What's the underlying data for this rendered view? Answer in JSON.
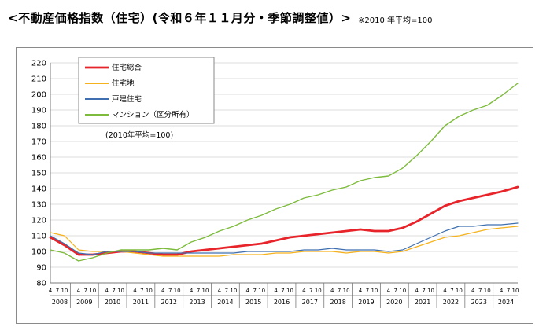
{
  "header": {
    "title": "<不動産価格指数（住宅）(令和６年１１月分・季節調整値）>",
    "note": "※2010 年平均=100"
  },
  "chart_data": {
    "type": "line",
    "title": "不動産価格指数（住宅）(令和６年１１月分・季節調整値）",
    "annotation": "(2010年平均=100)",
    "ylim": [
      80,
      220
    ],
    "ytick_step": 10,
    "y_ticks": [
      "80",
      "90",
      "100",
      "110",
      "120",
      "130",
      "140",
      "150",
      "160",
      "170",
      "180",
      "190",
      "200",
      "210",
      "220"
    ],
    "x_start": "2008-04",
    "x_end": "2024-11",
    "month_ticks": [
      "4",
      "7",
      "10"
    ],
    "years": [
      "2008",
      "2009",
      "2010",
      "2011",
      "2012",
      "2013",
      "2014",
      "2015",
      "2016",
      "2017",
      "2018",
      "2019",
      "2020",
      "2021",
      "2022",
      "2023",
      "2024"
    ],
    "grid": true,
    "legend_position": "top-left",
    "series": [
      {
        "name": "住宅総合",
        "color": "#e8242b",
        "width": 2.8,
        "points": [
          [
            "2008-04",
            109
          ],
          [
            "2008-10",
            104
          ],
          [
            "2009-04",
            98
          ],
          [
            "2009-10",
            98
          ],
          [
            "2010-04",
            99
          ],
          [
            "2010-10",
            100
          ],
          [
            "2011-04",
            100
          ],
          [
            "2011-10",
            99
          ],
          [
            "2012-04",
            98
          ],
          [
            "2012-10",
            98
          ],
          [
            "2013-04",
            100
          ],
          [
            "2013-10",
            101
          ],
          [
            "2014-04",
            102
          ],
          [
            "2014-10",
            103
          ],
          [
            "2015-04",
            104
          ],
          [
            "2015-10",
            105
          ],
          [
            "2016-04",
            107
          ],
          [
            "2016-10",
            109
          ],
          [
            "2017-04",
            110
          ],
          [
            "2017-10",
            111
          ],
          [
            "2018-04",
            112
          ],
          [
            "2018-10",
            113
          ],
          [
            "2019-04",
            114
          ],
          [
            "2019-10",
            113
          ],
          [
            "2020-04",
            113
          ],
          [
            "2020-10",
            115
          ],
          [
            "2021-04",
            119
          ],
          [
            "2021-10",
            124
          ],
          [
            "2022-04",
            129
          ],
          [
            "2022-10",
            132
          ],
          [
            "2023-04",
            134
          ],
          [
            "2023-10",
            136
          ],
          [
            "2024-04",
            138
          ],
          [
            "2024-11",
            141
          ]
        ]
      },
      {
        "name": "住宅地",
        "color": "#f5b21c",
        "width": 1.2,
        "points": [
          [
            "2008-04",
            112
          ],
          [
            "2008-10",
            110
          ],
          [
            "2009-04",
            101
          ],
          [
            "2009-10",
            100
          ],
          [
            "2010-04",
            100
          ],
          [
            "2010-10",
            100
          ],
          [
            "2011-04",
            99
          ],
          [
            "2011-10",
            98
          ],
          [
            "2012-04",
            97
          ],
          [
            "2012-10",
            97
          ],
          [
            "2013-04",
            97
          ],
          [
            "2013-10",
            97
          ],
          [
            "2014-04",
            97
          ],
          [
            "2014-10",
            98
          ],
          [
            "2015-04",
            98
          ],
          [
            "2015-10",
            98
          ],
          [
            "2016-04",
            99
          ],
          [
            "2016-10",
            99
          ],
          [
            "2017-04",
            100
          ],
          [
            "2017-10",
            100
          ],
          [
            "2018-04",
            100
          ],
          [
            "2018-10",
            99
          ],
          [
            "2019-04",
            100
          ],
          [
            "2019-10",
            100
          ],
          [
            "2020-04",
            99
          ],
          [
            "2020-10",
            100
          ],
          [
            "2021-04",
            103
          ],
          [
            "2021-10",
            106
          ],
          [
            "2022-04",
            109
          ],
          [
            "2022-10",
            110
          ],
          [
            "2023-04",
            112
          ],
          [
            "2023-10",
            114
          ],
          [
            "2024-04",
            115
          ],
          [
            "2024-11",
            116
          ]
        ]
      },
      {
        "name": "戸建住宅",
        "color": "#3f6fb0",
        "width": 1.2,
        "points": [
          [
            "2008-04",
            110
          ],
          [
            "2008-10",
            105
          ],
          [
            "2009-04",
            99
          ],
          [
            "2009-10",
            98
          ],
          [
            "2010-04",
            100
          ],
          [
            "2010-10",
            100
          ],
          [
            "2011-04",
            100
          ],
          [
            "2011-10",
            99
          ],
          [
            "2012-04",
            99
          ],
          [
            "2012-10",
            99
          ],
          [
            "2013-04",
            99
          ],
          [
            "2013-10",
            99
          ],
          [
            "2014-04",
            99
          ],
          [
            "2014-10",
            99
          ],
          [
            "2015-04",
            100
          ],
          [
            "2015-10",
            100
          ],
          [
            "2016-04",
            100
          ],
          [
            "2016-10",
            100
          ],
          [
            "2017-04",
            101
          ],
          [
            "2017-10",
            101
          ],
          [
            "2018-04",
            102
          ],
          [
            "2018-10",
            101
          ],
          [
            "2019-04",
            101
          ],
          [
            "2019-10",
            101
          ],
          [
            "2020-04",
            100
          ],
          [
            "2020-10",
            101
          ],
          [
            "2021-04",
            105
          ],
          [
            "2021-10",
            109
          ],
          [
            "2022-04",
            113
          ],
          [
            "2022-10",
            116
          ],
          [
            "2023-04",
            116
          ],
          [
            "2023-10",
            117
          ],
          [
            "2024-04",
            117
          ],
          [
            "2024-11",
            118
          ]
        ]
      },
      {
        "name": "マンション（区分所有）",
        "color": "#7dbb3c",
        "width": 1.4,
        "points": [
          [
            "2008-04",
            101
          ],
          [
            "2008-10",
            99
          ],
          [
            "2009-04",
            94
          ],
          [
            "2009-10",
            96
          ],
          [
            "2010-04",
            99
          ],
          [
            "2010-10",
            101
          ],
          [
            "2011-04",
            101
          ],
          [
            "2011-10",
            101
          ],
          [
            "2012-04",
            102
          ],
          [
            "2012-10",
            101
          ],
          [
            "2013-04",
            106
          ],
          [
            "2013-10",
            109
          ],
          [
            "2014-04",
            113
          ],
          [
            "2014-10",
            116
          ],
          [
            "2015-04",
            120
          ],
          [
            "2015-10",
            123
          ],
          [
            "2016-04",
            127
          ],
          [
            "2016-10",
            130
          ],
          [
            "2017-04",
            134
          ],
          [
            "2017-10",
            136
          ],
          [
            "2018-04",
            139
          ],
          [
            "2018-10",
            141
          ],
          [
            "2019-04",
            145
          ],
          [
            "2019-10",
            147
          ],
          [
            "2020-04",
            148
          ],
          [
            "2020-10",
            153
          ],
          [
            "2021-04",
            161
          ],
          [
            "2021-10",
            170
          ],
          [
            "2022-04",
            180
          ],
          [
            "2022-10",
            186
          ],
          [
            "2023-04",
            190
          ],
          [
            "2023-10",
            193
          ],
          [
            "2024-04",
            199
          ],
          [
            "2024-11",
            207
          ]
        ]
      }
    ]
  }
}
